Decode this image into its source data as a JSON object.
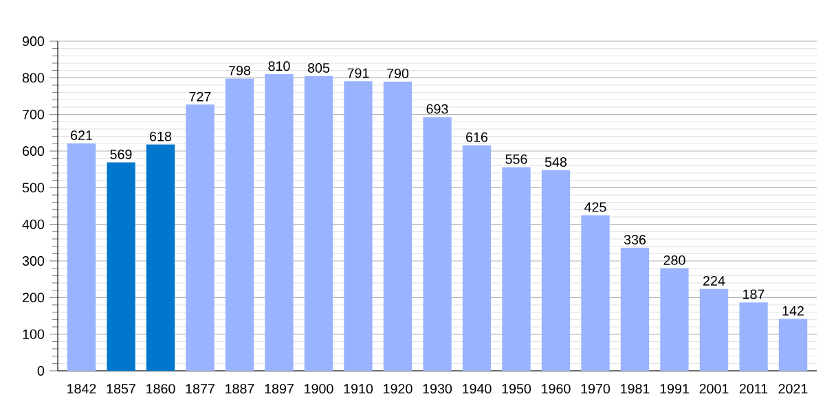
{
  "chart_data": {
    "type": "bar",
    "categories": [
      "1842",
      "1857",
      "1860",
      "1877",
      "1887",
      "1897",
      "1900",
      "1910",
      "1920",
      "1930",
      "1940",
      "1950",
      "1960",
      "1970",
      "1981",
      "1991",
      "2001",
      "2011",
      "2021"
    ],
    "values": [
      621,
      569,
      618,
      727,
      798,
      810,
      805,
      791,
      790,
      693,
      616,
      556,
      548,
      425,
      336,
      280,
      224,
      187,
      142
    ],
    "colors": [
      "#99b3ff",
      "#0077cc",
      "#0077cc",
      "#99b3ff",
      "#99b3ff",
      "#99b3ff",
      "#99b3ff",
      "#99b3ff",
      "#99b3ff",
      "#99b3ff",
      "#99b3ff",
      "#99b3ff",
      "#99b3ff",
      "#99b3ff",
      "#99b3ff",
      "#99b3ff",
      "#99b3ff",
      "#99b3ff",
      "#99b3ff"
    ],
    "ylim": [
      0,
      900
    ],
    "yticks": [
      0,
      100,
      200,
      300,
      400,
      500,
      600,
      700,
      800,
      900
    ],
    "grid": "y",
    "data_labels": true
  }
}
